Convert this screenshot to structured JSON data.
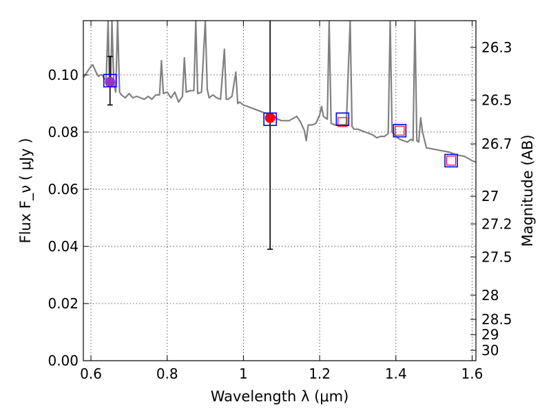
{
  "chart_data": {
    "type": "line",
    "xlabel": "Wavelength  λ (μm)",
    "ylabel": "Flux  F_ν  ( μJy )",
    "ylabel_right": "Magnitude (AB)",
    "xlim": [
      0.58,
      1.61
    ],
    "ylim": [
      0.0,
      0.119
    ],
    "grid": true,
    "x_ticks": [
      0.6,
      0.8,
      1.0,
      1.2,
      1.4,
      1.6
    ],
    "x_tick_labels": [
      "0.6",
      "0.8",
      "1",
      "1.2",
      "1.4",
      "1.6"
    ],
    "y_ticks": [
      0.0,
      0.02,
      0.04,
      0.06,
      0.08,
      0.1
    ],
    "y_tick_labels": [
      "0.00",
      "0.02",
      "0.04",
      "0.06",
      "0.08",
      "0.10"
    ],
    "mag_ticks": [
      26.3,
      26.5,
      26.7,
      27,
      27.2,
      27.5,
      28,
      28.5,
      29,
      30
    ],
    "mag_tick_labels": [
      "26.3",
      "26.5",
      "26.7",
      "27",
      "27.2",
      "27.5",
      "28",
      "28.5",
      "29",
      "30"
    ],
    "series": [
      {
        "kind": "model-spectrum",
        "color": "#808080",
        "points": [
          [
            0.58,
            0.099
          ],
          [
            0.59,
            0.101
          ],
          [
            0.6,
            0.103
          ],
          [
            0.605,
            0.1035
          ],
          [
            0.61,
            0.102
          ],
          [
            0.615,
            0.1005
          ],
          [
            0.62,
            0.0995
          ],
          [
            0.625,
            0.1
          ],
          [
            0.63,
            0.1
          ],
          [
            0.635,
            0.0985
          ],
          [
            0.64,
            0.099
          ],
          [
            0.645,
            0.119
          ],
          [
            0.648,
            0.099
          ],
          [
            0.652,
            0.097
          ],
          [
            0.655,
            0.119
          ],
          [
            0.66,
            0.097
          ],
          [
            0.665,
            0.094
          ],
          [
            0.67,
            0.119
          ],
          [
            0.675,
            0.094
          ],
          [
            0.68,
            0.093
          ],
          [
            0.69,
            0.092
          ],
          [
            0.7,
            0.0935
          ],
          [
            0.71,
            0.092
          ],
          [
            0.72,
            0.0925
          ],
          [
            0.73,
            0.092
          ],
          [
            0.74,
            0.0915
          ],
          [
            0.75,
            0.0925
          ],
          [
            0.76,
            0.0915
          ],
          [
            0.77,
            0.093
          ],
          [
            0.78,
            0.093
          ],
          [
            0.785,
            0.105
          ],
          [
            0.79,
            0.0935
          ],
          [
            0.8,
            0.094
          ],
          [
            0.81,
            0.092
          ],
          [
            0.82,
            0.094
          ],
          [
            0.83,
            0.0905
          ],
          [
            0.84,
            0.0925
          ],
          [
            0.845,
            0.106
          ],
          [
            0.85,
            0.094
          ],
          [
            0.86,
            0.0945
          ],
          [
            0.87,
            0.0945
          ],
          [
            0.875,
            0.119
          ],
          [
            0.88,
            0.0935
          ],
          [
            0.89,
            0.094
          ],
          [
            0.9,
            0.119
          ],
          [
            0.905,
            0.095
          ],
          [
            0.91,
            0.092
          ],
          [
            0.92,
            0.093
          ],
          [
            0.93,
            0.092
          ],
          [
            0.94,
            0.0915
          ],
          [
            0.95,
            0.109
          ],
          [
            0.955,
            0.0915
          ],
          [
            0.96,
            0.0915
          ],
          [
            0.97,
            0.0925
          ],
          [
            0.98,
            0.101
          ],
          [
            0.985,
            0.09
          ],
          [
            0.99,
            0.0905
          ],
          [
            1.0,
            0.0895
          ],
          [
            1.01,
            0.089
          ],
          [
            1.02,
            0.0885
          ],
          [
            1.03,
            0.088
          ],
          [
            1.04,
            0.0875
          ],
          [
            1.05,
            0.087
          ],
          [
            1.06,
            0.0865
          ],
          [
            1.07,
            0.086
          ],
          [
            1.08,
            0.0855
          ],
          [
            1.09,
            0.0845
          ],
          [
            1.1,
            0.084
          ],
          [
            1.12,
            0.084
          ],
          [
            1.14,
            0.0855
          ],
          [
            1.15,
            0.0835
          ],
          [
            1.16,
            0.0805
          ],
          [
            1.165,
            0.077
          ],
          [
            1.17,
            0.0825
          ],
          [
            1.18,
            0.0825
          ],
          [
            1.19,
            0.083
          ],
          [
            1.2,
            0.086
          ],
          [
            1.205,
            0.089
          ],
          [
            1.21,
            0.0855
          ],
          [
            1.22,
            0.0845
          ],
          [
            1.225,
            0.119
          ],
          [
            1.23,
            0.083
          ],
          [
            1.24,
            0.0825
          ],
          [
            1.25,
            0.0825
          ],
          [
            1.26,
            0.0825
          ],
          [
            1.27,
            0.0825
          ],
          [
            1.28,
            0.119
          ],
          [
            1.285,
            0.082
          ],
          [
            1.29,
            0.081
          ],
          [
            1.3,
            0.081
          ],
          [
            1.31,
            0.0805
          ],
          [
            1.32,
            0.08
          ],
          [
            1.33,
            0.0795
          ],
          [
            1.34,
            0.079
          ],
          [
            1.35,
            0.078
          ],
          [
            1.36,
            0.0785
          ],
          [
            1.37,
            0.0785
          ],
          [
            1.38,
            0.0795
          ],
          [
            1.385,
            0.119
          ],
          [
            1.39,
            0.08
          ],
          [
            1.4,
            0.0785
          ],
          [
            1.41,
            0.0775
          ],
          [
            1.42,
            0.077
          ],
          [
            1.43,
            0.0765
          ],
          [
            1.44,
            0.0775
          ],
          [
            1.445,
            0.077
          ],
          [
            1.45,
            0.119
          ],
          [
            1.455,
            0.077
          ],
          [
            1.46,
            0.0765
          ],
          [
            1.465,
            0.085
          ],
          [
            1.47,
            0.08
          ],
          [
            1.48,
            0.0745
          ],
          [
            1.5,
            0.074
          ],
          [
            1.52,
            0.0735
          ],
          [
            1.54,
            0.073
          ],
          [
            1.56,
            0.072
          ],
          [
            1.58,
            0.0715
          ],
          [
            1.6,
            0.07
          ],
          [
            1.61,
            0.0695
          ]
        ]
      },
      {
        "kind": "photometry-points",
        "color": "#ff0000",
        "points": [
          {
            "x": 0.65,
            "y": 0.0975,
            "yerr": [
              0.0895,
              0.1065
            ],
            "style": "filled-circle",
            "fill": "#9b30d0"
          },
          {
            "x": 1.07,
            "y": 0.085,
            "yerr": [
              0.039,
              0.119
            ],
            "style": "filled-circle",
            "fill": "#ff0000"
          },
          {
            "x": 1.26,
            "y": 0.0835,
            "style": "open-square"
          },
          {
            "x": 1.41,
            "y": 0.0805,
            "style": "open-square"
          },
          {
            "x": 1.545,
            "y": 0.07,
            "style": "open-square"
          }
        ]
      },
      {
        "kind": "model-photometry",
        "color": "#0000ff",
        "style": "open-square",
        "points": [
          [
            0.65,
            0.098
          ],
          [
            1.07,
            0.0845
          ],
          [
            1.26,
            0.0845
          ],
          [
            1.41,
            0.0805
          ],
          [
            1.545,
            0.07
          ]
        ]
      }
    ]
  }
}
